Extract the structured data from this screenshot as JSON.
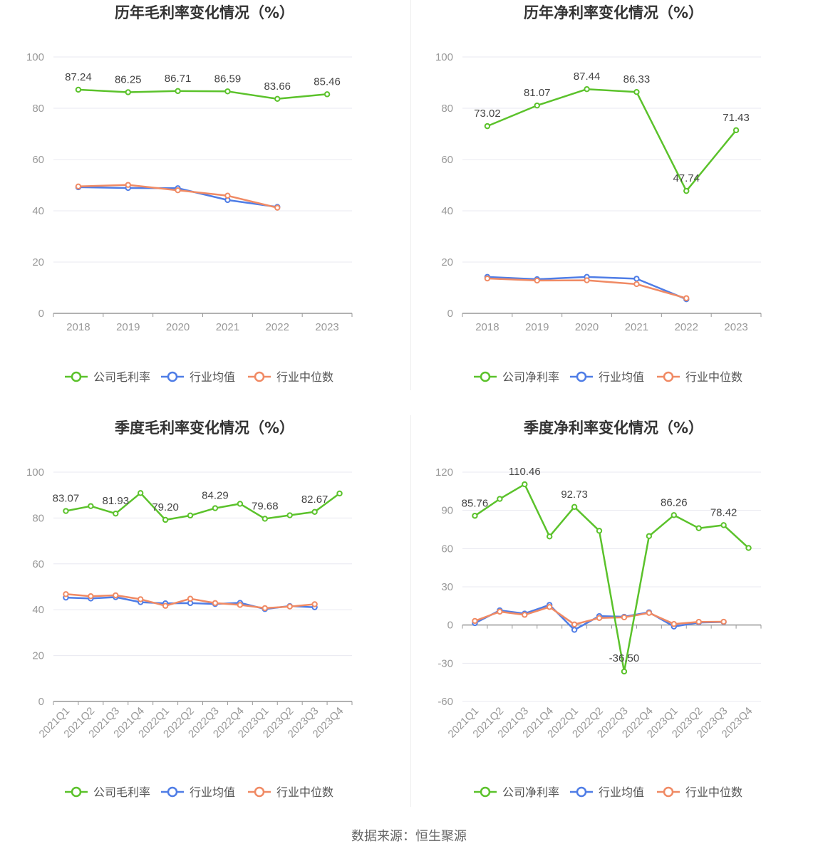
{
  "footer": {
    "source": "数据来源：恒生聚源"
  },
  "colors": {
    "company": "#5bc22b",
    "industry_avg": "#4f7de6",
    "industry_median": "#f08a64",
    "grid": "#e8e8f0",
    "axis": "#999999"
  },
  "legend_icon": "circle-line-icon",
  "chart_data": [
    {
      "type": "line",
      "title": "历年毛利率变化情况（%）",
      "categories": [
        "2018",
        "2019",
        "2020",
        "2021",
        "2022",
        "2023"
      ],
      "ylim": [
        0,
        100
      ],
      "yticks": [
        0,
        20,
        40,
        60,
        80,
        100
      ],
      "rotate_labels": false,
      "grid": true,
      "legend_position": "bottom",
      "series": [
        {
          "name": "公司毛利率",
          "key": "company",
          "values": [
            87.24,
            86.25,
            86.71,
            86.59,
            83.66,
            85.46
          ],
          "labels": [
            "87.24",
            "86.25",
            "86.71",
            "86.59",
            "83.66",
            "85.46"
          ]
        },
        {
          "name": "行业均值",
          "key": "industry_avg",
          "values": [
            49.2,
            48.9,
            48.8,
            44.2,
            41.5,
            null
          ]
        },
        {
          "name": "行业中位数",
          "key": "industry_median",
          "values": [
            49.5,
            50.1,
            48.0,
            45.9,
            41.2,
            null
          ]
        }
      ]
    },
    {
      "type": "line",
      "title": "历年净利率变化情况（%）",
      "categories": [
        "2018",
        "2019",
        "2020",
        "2021",
        "2022",
        "2023"
      ],
      "ylim": [
        0,
        100
      ],
      "yticks": [
        0,
        20,
        40,
        60,
        80,
        100
      ],
      "rotate_labels": false,
      "grid": true,
      "legend_position": "bottom",
      "series": [
        {
          "name": "公司净利率",
          "key": "company",
          "values": [
            73.02,
            81.07,
            87.44,
            86.33,
            47.74,
            71.43
          ],
          "labels": [
            "73.02",
            "81.07",
            "87.44",
            "86.33",
            "47.74",
            "71.43"
          ]
        },
        {
          "name": "行业均值",
          "key": "industry_avg",
          "values": [
            14.2,
            13.3,
            14.2,
            13.5,
            5.5,
            null
          ]
        },
        {
          "name": "行业中位数",
          "key": "industry_median",
          "values": [
            13.6,
            12.8,
            12.9,
            11.4,
            5.9,
            null
          ]
        }
      ]
    },
    {
      "type": "line",
      "title": "季度毛利率变化情况（%）",
      "categories": [
        "2021Q1",
        "2021Q2",
        "2021Q3",
        "2021Q4",
        "2022Q1",
        "2022Q2",
        "2022Q3",
        "2022Q4",
        "2023Q1",
        "2023Q2",
        "2023Q3",
        "2023Q4"
      ],
      "ylim": [
        0,
        100
      ],
      "yticks": [
        0,
        20,
        40,
        60,
        80,
        100
      ],
      "rotate_labels": true,
      "grid": true,
      "legend_position": "bottom",
      "series": [
        {
          "name": "公司毛利率",
          "key": "company",
          "values": [
            83.07,
            85.2,
            81.93,
            90.9,
            79.2,
            81.1,
            84.29,
            86.2,
            79.68,
            81.2,
            82.67,
            90.7
          ],
          "labels": [
            "83.07",
            "",
            "81.93",
            "",
            "79.20",
            "",
            "84.29",
            "",
            "79.68",
            "",
            "82.67",
            ""
          ]
        },
        {
          "name": "行业均值",
          "key": "industry_avg",
          "values": [
            45.3,
            44.9,
            45.5,
            43.3,
            42.8,
            42.9,
            42.5,
            43.0,
            40.3,
            41.6,
            41.1,
            null
          ]
        },
        {
          "name": "行业中位数",
          "key": "industry_median",
          "values": [
            46.8,
            45.9,
            46.3,
            44.6,
            41.7,
            44.8,
            42.9,
            42.1,
            40.7,
            41.4,
            42.4,
            null
          ]
        }
      ]
    },
    {
      "type": "line",
      "title": "季度净利率变化情况（%）",
      "categories": [
        "2021Q1",
        "2021Q2",
        "2021Q3",
        "2021Q4",
        "2022Q1",
        "2022Q2",
        "2022Q3",
        "2022Q4",
        "2023Q1",
        "2023Q2",
        "2023Q3",
        "2023Q4"
      ],
      "ylim": [
        -60,
        120
      ],
      "yticks": [
        -60,
        -30,
        0,
        30,
        60,
        90,
        120
      ],
      "rotate_labels": true,
      "grid": true,
      "legend_position": "bottom",
      "series": [
        {
          "name": "公司净利率",
          "key": "company",
          "values": [
            85.76,
            99.0,
            110.46,
            69.5,
            92.73,
            74.0,
            -36.5,
            69.8,
            86.26,
            76.0,
            78.42,
            60.5
          ],
          "labels": [
            "85.76",
            "",
            "110.46",
            "",
            "92.73",
            "",
            "-36.50",
            "",
            "86.26",
            "",
            "78.42",
            ""
          ]
        },
        {
          "name": "行业均值",
          "key": "industry_avg",
          "values": [
            1.5,
            11.5,
            9.0,
            15.8,
            -3.8,
            7.0,
            6.5,
            10.0,
            -1.2,
            2.0,
            2.4,
            null
          ]
        },
        {
          "name": "行业中位数",
          "key": "industry_median",
          "values": [
            3.2,
            10.5,
            8.0,
            14.2,
            0.5,
            5.5,
            6.0,
            9.5,
            0.8,
            2.5,
            2.6,
            null
          ]
        }
      ]
    }
  ]
}
